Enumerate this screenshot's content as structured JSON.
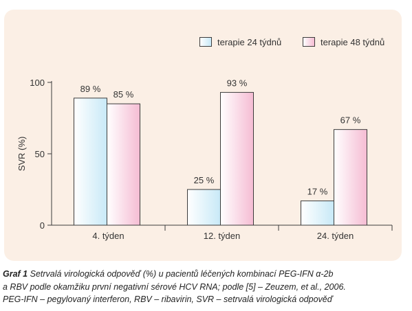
{
  "chart_data": {
    "type": "bar",
    "categories": [
      "4. týden",
      "12. týden",
      "24. týden"
    ],
    "series": [
      {
        "name": "terapie 24 týdnů",
        "values": [
          89,
          25,
          17
        ],
        "labels": [
          "89 %",
          "25 %",
          "17 %"
        ]
      },
      {
        "name": "terapie 48 týdnů",
        "values": [
          85,
          93,
          67
        ],
        "labels": [
          "85 %",
          "93 %",
          "67 %"
        ]
      }
    ],
    "ylabel": "SVR (%)",
    "ylim": [
      0,
      100
    ],
    "yticks": [
      {
        "value": 0,
        "label": "0"
      },
      {
        "value": 50,
        "label": "50"
      },
      {
        "value": 100,
        "label": "100"
      }
    ],
    "grid": false,
    "legend_position": "top-right"
  },
  "colors": {
    "series_24": "#ddf2fb",
    "series_48": "#fbdbe8",
    "panel": "#fbefe5",
    "axis": "#3b3b3b"
  },
  "caption": {
    "prefix": "Graf 1",
    "line1": "Setrvalá virologická odpověď (%) u pacientů léčených kombinací PEG-IFN α-2b",
    "line2": "a RBV podle okamžiku první negativní sérové HCV RNA; podle [5] – Zeuzem, et al., 2006.",
    "line3": "PEG-IFN – pegylovaný interferon, RBV – ribavirin, SVR – setrvalá virologická odpověď"
  }
}
